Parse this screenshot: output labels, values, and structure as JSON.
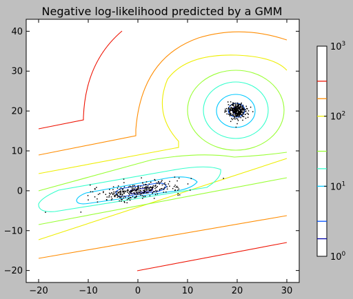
{
  "chart_data": {
    "type": "contour",
    "title": "Negative log-likelihood predicted by a GMM",
    "xlabel": "",
    "ylabel": "",
    "xlim": [
      -22.5,
      32.5
    ],
    "ylim": [
      -23,
      43
    ],
    "x_ticks": [
      -20,
      -10,
      0,
      10,
      20,
      30
    ],
    "y_ticks": [
      -20,
      -10,
      0,
      10,
      20,
      30,
      40
    ],
    "grid": false,
    "components": [
      {
        "name": "",
        "center": [
          0,
          0
        ],
        "shape": "elongated",
        "angle_deg": 10
      },
      {
        "name": "",
        "center": [
          20,
          20
        ],
        "shape": "round"
      }
    ],
    "contour_levels": [
      {
        "level": 1.78,
        "color": "#0000aa"
      },
      {
        "level": 3.16,
        "color": "#0050ff"
      },
      {
        "level": 10.0,
        "color": "#00c8ff"
      },
      {
        "level": 17.8,
        "color": "#33ffcc"
      },
      {
        "level": 31.6,
        "color": "#99ff33"
      },
      {
        "level": 100.0,
        "color": "#eeee00"
      },
      {
        "level": 178,
        "color": "#ff8c00"
      },
      {
        "level": 316,
        "color": "#ee1100"
      }
    ],
    "colorbar": {
      "scale": "log",
      "range": [
        1,
        1000
      ],
      "tick_labels": [
        {
          "base": "10",
          "exp": "0",
          "value": 1
        },
        {
          "base": "10",
          "exp": "1",
          "value": 10
        },
        {
          "base": "10",
          "exp": "2",
          "value": 100
        },
        {
          "base": "10",
          "exp": "3",
          "value": 1000
        }
      ]
    },
    "point_clusters": [
      {
        "center": [
          0,
          0
        ],
        "spread": [
          4.5,
          1.0
        ],
        "angle_deg": 9,
        "count": 300,
        "color": "#000000"
      },
      {
        "center": [
          20,
          20
        ],
        "spread": [
          1.0,
          1.0
        ],
        "angle_deg": 0,
        "count": 300,
        "color": "#000000"
      }
    ]
  }
}
